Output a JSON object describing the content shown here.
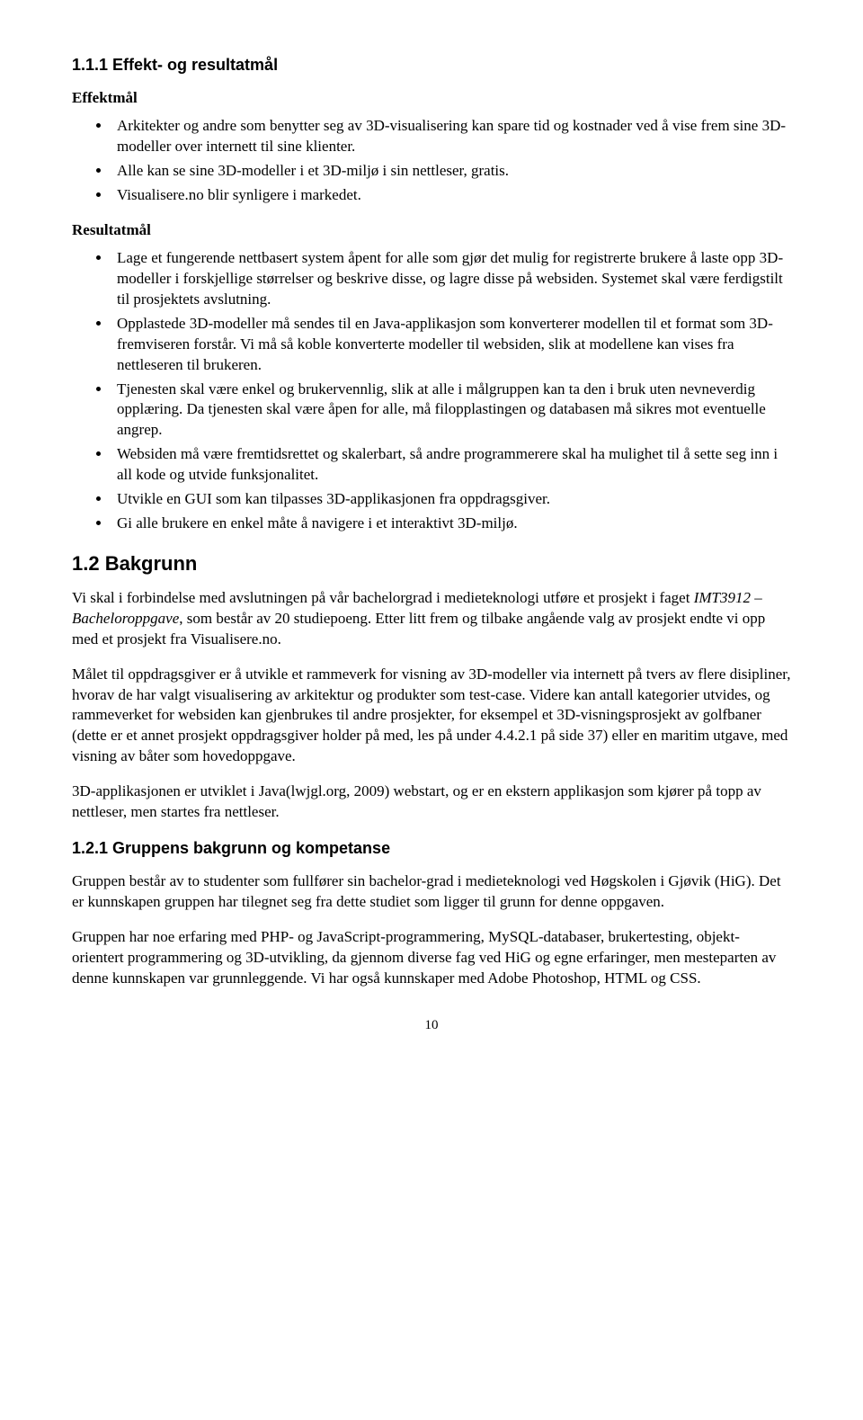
{
  "s111": {
    "heading": "1.1.1 Effekt- og resultatmål",
    "effekt_label": "Effektmål",
    "effekt_items": [
      "Arkitekter og andre som benytter seg av 3D-visualisering kan spare tid og kostnader ved å vise frem sine 3D-modeller over internett til sine klienter.",
      "Alle kan se sine 3D-modeller i et 3D-miljø i sin nettleser, gratis.",
      "Visualisere.no blir synligere i markedet."
    ],
    "resultat_label": "Resultatmål",
    "resultat_items": [
      "Lage et fungerende nettbasert system åpent for alle som gjør det mulig for registrerte brukere å laste opp 3D-modeller i forskjellige størrelser og beskrive disse, og lagre disse på websiden. Systemet skal være ferdigstilt til prosjektets avslutning.",
      "Opplastede 3D-modeller må sendes til en Java-applikasjon som konverterer modellen til et format som 3D-fremviseren forstår. Vi må så koble konverterte modeller til websiden, slik at modellene kan vises fra nettleseren til brukeren.",
      "Tjenesten skal være enkel og brukervennlig, slik at alle i målgruppen kan ta den i bruk uten nevneverdig opplæring. Da tjenesten skal være åpen for alle, må filopplastingen og databasen må sikres mot eventuelle angrep.",
      "Websiden må være fremtidsrettet og skalerbart, så andre programmerere skal ha mulighet til å sette seg inn i all kode og utvide funksjonalitet.",
      "Utvikle en GUI som kan tilpasses 3D-applikasjonen fra oppdragsgiver.",
      "Gi alle brukere en enkel måte å navigere i et interaktivt 3D-miljø."
    ]
  },
  "s12": {
    "heading": "1.2 Bakgrunn",
    "p1a": "Vi skal i forbindelse med avslutningen på vår bachelorgrad i medieteknologi utføre et prosjekt i faget ",
    "p1b": "IMT3912 – Bacheloroppgave",
    "p1c": ", som består av 20 studiepoeng. Etter litt frem og tilbake angående valg av prosjekt endte vi opp med et prosjekt fra Visualisere.no.",
    "p2": "Målet til oppdragsgiver er å utvikle et rammeverk for visning av 3D-modeller via internett på tvers av flere disipliner, hvorav de har valgt visualisering av arkitektur og produkter som test-case. Videre kan antall kategorier utvides, og rammeverket for websiden kan gjenbrukes til andre prosjekter, for eksempel et 3D-visningsprosjekt av golfbaner (dette er et annet prosjekt oppdragsgiver holder på med, les på under 4.4.2.1 på side 37) eller en maritim utgave, med visning av båter som hovedoppgave.",
    "p3": "3D-applikasjonen er utviklet i Java(lwjgl.org, 2009) webstart, og er en ekstern applikasjon som kjører på topp av nettleser, men startes fra nettleser."
  },
  "s121": {
    "heading": "1.2.1 Gruppens bakgrunn og kompetanse",
    "p1": "Gruppen består av to studenter som fullfører sin bachelor-grad i medieteknologi ved Høgskolen i Gjøvik (HiG). Det er kunnskapen gruppen har tilegnet seg fra dette studiet som ligger til grunn for denne oppgaven.",
    "p2": "Gruppen har noe erfaring med PHP- og JavaScript-programmering, MySQL-databaser, brukertesting, objekt-orientert programmering og 3D-utvikling, da gjennom diverse fag ved HiG og egne erfaringer, men mesteparten av denne kunnskapen var grunnleggende. Vi har også kunnskaper med Adobe Photoshop, HTML og CSS."
  },
  "pagenum": "10"
}
